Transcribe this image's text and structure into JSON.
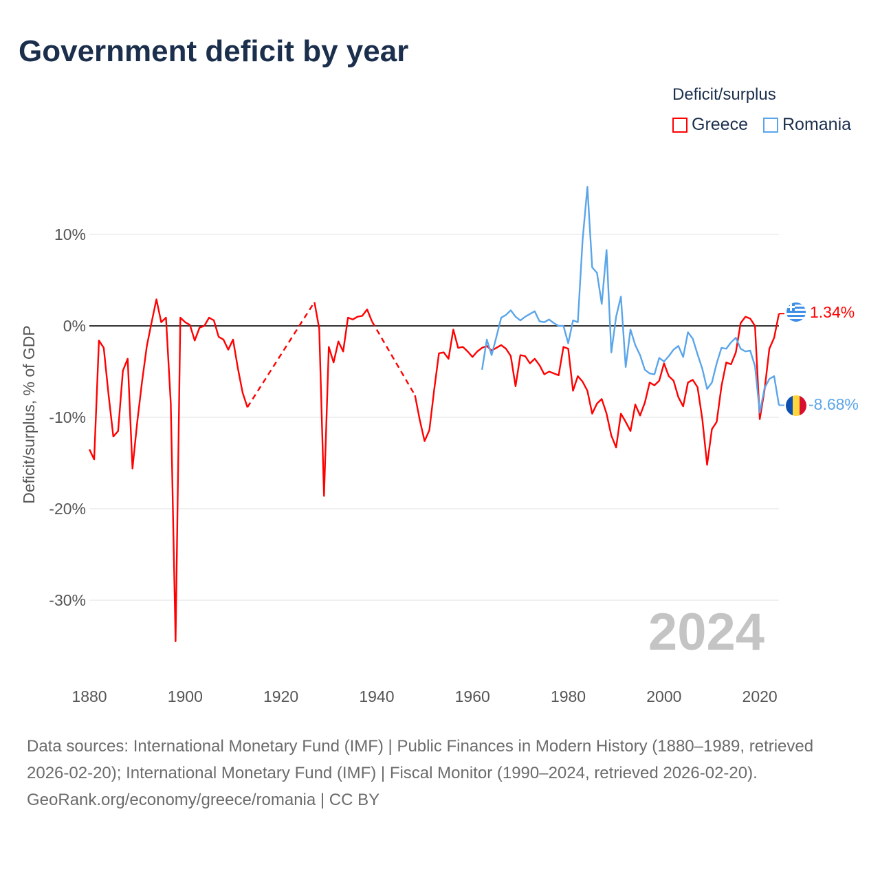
{
  "title": "Government deficit by year",
  "legend": {
    "title": "Deficit/surplus",
    "items": [
      {
        "label": "Greece",
        "color": "#ff0000"
      },
      {
        "label": "Romania",
        "color": "#5aa5ea"
      }
    ]
  },
  "chart_data": {
    "type": "line",
    "title": "Government deficit by year",
    "xlabel": "",
    "ylabel": "Deficit/surplus, % of GDP",
    "xlim": [
      1880,
      2024
    ],
    "ylim": [
      -36,
      18
    ],
    "x_ticks": [
      1880,
      1900,
      1920,
      1940,
      1960,
      1980,
      2000,
      2020
    ],
    "x_tick_labels": [
      "1880",
      "1900",
      "1920",
      "1940",
      "1960",
      "1980",
      "2000",
      "2020"
    ],
    "y_ticks": [
      10,
      0,
      -10,
      -20,
      -30
    ],
    "y_tick_labels": [
      "10%",
      "0%",
      "-10%",
      "-20%",
      "-30%"
    ],
    "grid": true,
    "year_watermark": "2024",
    "series": [
      {
        "name": "Greece",
        "color": "#ff0000",
        "end_label": "1.34%",
        "points": [
          [
            1880,
            -13.5
          ],
          [
            1881,
            -14.6
          ],
          [
            1882,
            -1.6
          ],
          [
            1883,
            -2.4
          ],
          [
            1884,
            -7.5
          ],
          [
            1885,
            -12.1
          ],
          [
            1886,
            -11.5
          ],
          [
            1887,
            -4.9
          ],
          [
            1888,
            -3.6
          ],
          [
            1889,
            -15.6
          ],
          [
            1890,
            -10.5
          ],
          [
            1891,
            -6.1
          ],
          [
            1892,
            -2.2
          ],
          [
            1893,
            0.4
          ],
          [
            1894,
            2.9
          ],
          [
            1895,
            0.4
          ],
          [
            1896,
            0.9
          ],
          [
            1897,
            -8.5
          ],
          [
            1898,
            -34.5
          ],
          [
            1899,
            0.9
          ],
          [
            1900,
            0.4
          ],
          [
            1901,
            0.1
          ],
          [
            1902,
            -1.6
          ],
          [
            1903,
            -0.2
          ],
          [
            1904,
            0.0
          ],
          [
            1905,
            0.9
          ],
          [
            1906,
            0.6
          ],
          [
            1907,
            -1.2
          ],
          [
            1908,
            -1.5
          ],
          [
            1909,
            -2.6
          ],
          [
            1910,
            -1.5
          ],
          [
            1911,
            -4.6
          ],
          [
            1912,
            -7.3
          ],
          [
            1913,
            -8.9
          ],
          [
            1927,
            2.6
          ],
          [
            1928,
            -0.3
          ],
          [
            1929,
            -18.6
          ],
          [
            1930,
            -2.3
          ],
          [
            1931,
            -4.0
          ],
          [
            1932,
            -1.7
          ],
          [
            1933,
            -2.8
          ],
          [
            1934,
            0.9
          ],
          [
            1935,
            0.7
          ],
          [
            1936,
            1.0
          ],
          [
            1937,
            1.1
          ],
          [
            1938,
            1.8
          ],
          [
            1939,
            0.5
          ],
          [
            1948,
            -7.6
          ],
          [
            1949,
            -10.3
          ],
          [
            1950,
            -12.6
          ],
          [
            1951,
            -11.4
          ],
          [
            1952,
            -7.0
          ],
          [
            1953,
            -3.0
          ],
          [
            1954,
            -2.9
          ],
          [
            1955,
            -3.6
          ],
          [
            1956,
            -0.4
          ],
          [
            1957,
            -2.4
          ],
          [
            1958,
            -2.3
          ],
          [
            1959,
            -2.8
          ],
          [
            1960,
            -3.4
          ],
          [
            1961,
            -2.8
          ],
          [
            1962,
            -2.4
          ],
          [
            1963,
            -2.2
          ],
          [
            1964,
            -2.7
          ],
          [
            1965,
            -2.4
          ],
          [
            1966,
            -2.1
          ],
          [
            1967,
            -2.5
          ],
          [
            1968,
            -3.3
          ],
          [
            1969,
            -6.6
          ],
          [
            1970,
            -3.2
          ],
          [
            1971,
            -3.3
          ],
          [
            1972,
            -4.1
          ],
          [
            1973,
            -3.6
          ],
          [
            1974,
            -4.3
          ],
          [
            1975,
            -5.3
          ],
          [
            1976,
            -5.0
          ],
          [
            1977,
            -5.2
          ],
          [
            1978,
            -5.4
          ],
          [
            1979,
            -2.3
          ],
          [
            1980,
            -2.5
          ],
          [
            1981,
            -7.1
          ],
          [
            1982,
            -5.5
          ],
          [
            1983,
            -6.1
          ],
          [
            1984,
            -7.1
          ],
          [
            1985,
            -9.6
          ],
          [
            1986,
            -8.5
          ],
          [
            1987,
            -8.0
          ],
          [
            1988,
            -9.6
          ],
          [
            1989,
            -12.0
          ],
          [
            1990,
            -13.3
          ],
          [
            1991,
            -9.6
          ],
          [
            1992,
            -10.5
          ],
          [
            1993,
            -11.5
          ],
          [
            1994,
            -8.6
          ],
          [
            1995,
            -9.8
          ],
          [
            1996,
            -8.4
          ],
          [
            1997,
            -6.2
          ],
          [
            1998,
            -6.5
          ],
          [
            1999,
            -6.0
          ],
          [
            2000,
            -4.1
          ],
          [
            2001,
            -5.5
          ],
          [
            2002,
            -6.0
          ],
          [
            2003,
            -7.8
          ],
          [
            2004,
            -8.8
          ],
          [
            2005,
            -6.2
          ],
          [
            2006,
            -5.9
          ],
          [
            2007,
            -6.7
          ],
          [
            2008,
            -10.2
          ],
          [
            2009,
            -15.2
          ],
          [
            2010,
            -11.3
          ],
          [
            2011,
            -10.5
          ],
          [
            2012,
            -6.6
          ],
          [
            2013,
            -4.0
          ],
          [
            2014,
            -4.2
          ],
          [
            2015,
            -2.9
          ],
          [
            2016,
            0.3
          ],
          [
            2017,
            1.0
          ],
          [
            2018,
            0.8
          ],
          [
            2019,
            0.0
          ],
          [
            2020,
            -10.2
          ],
          [
            2021,
            -7.0
          ],
          [
            2022,
            -2.5
          ],
          [
            2023,
            -1.3
          ],
          [
            2024,
            1.34
          ]
        ]
      },
      {
        "name": "Romania",
        "color": "#5aa5ea",
        "end_label": "-8.68%",
        "points": [
          [
            1962,
            -4.8
          ],
          [
            1963,
            -1.5
          ],
          [
            1964,
            -3.2
          ],
          [
            1965,
            -1.2
          ],
          [
            1966,
            0.9
          ],
          [
            1967,
            1.2
          ],
          [
            1968,
            1.7
          ],
          [
            1969,
            1.0
          ],
          [
            1970,
            0.6
          ],
          [
            1971,
            1.0
          ],
          [
            1972,
            1.3
          ],
          [
            1973,
            1.6
          ],
          [
            1974,
            0.5
          ],
          [
            1975,
            0.4
          ],
          [
            1976,
            0.7
          ],
          [
            1977,
            0.3
          ],
          [
            1978,
            0.0
          ],
          [
            1979,
            0.0
          ],
          [
            1980,
            -1.9
          ],
          [
            1981,
            0.6
          ],
          [
            1982,
            0.4
          ],
          [
            1983,
            9.4
          ],
          [
            1984,
            15.2
          ],
          [
            1985,
            6.4
          ],
          [
            1986,
            5.8
          ],
          [
            1987,
            2.4
          ],
          [
            1988,
            8.3
          ],
          [
            1989,
            -2.9
          ],
          [
            1990,
            1.0
          ],
          [
            1991,
            3.2
          ],
          [
            1992,
            -4.5
          ],
          [
            1993,
            -0.4
          ],
          [
            1994,
            -2.1
          ],
          [
            1995,
            -3.2
          ],
          [
            1996,
            -4.8
          ],
          [
            1997,
            -5.2
          ],
          [
            1998,
            -5.3
          ],
          [
            1999,
            -3.5
          ],
          [
            2000,
            -3.9
          ],
          [
            2001,
            -3.3
          ],
          [
            2002,
            -2.6
          ],
          [
            2003,
            -2.2
          ],
          [
            2004,
            -3.4
          ],
          [
            2005,
            -0.7
          ],
          [
            2006,
            -1.4
          ],
          [
            2007,
            -3.1
          ],
          [
            2008,
            -4.7
          ],
          [
            2009,
            -6.9
          ],
          [
            2010,
            -6.2
          ],
          [
            2011,
            -4.1
          ],
          [
            2012,
            -2.4
          ],
          [
            2013,
            -2.5
          ],
          [
            2014,
            -1.8
          ],
          [
            2015,
            -1.3
          ],
          [
            2016,
            -2.5
          ],
          [
            2017,
            -2.8
          ],
          [
            2018,
            -2.7
          ],
          [
            2019,
            -4.4
          ],
          [
            2020,
            -9.5
          ],
          [
            2021,
            -6.8
          ],
          [
            2022,
            -5.8
          ],
          [
            2023,
            -5.5
          ],
          [
            2024,
            -8.68
          ]
        ]
      }
    ]
  },
  "footer": {
    "sources": "Data sources: International Monetary Fund (IMF) | Public Finances in Modern History (1880–1989, retrieved 2026-02-20); International Monetary Fund (IMF) | Fiscal Monitor (1990–2024, retrieved 2026-02-20).",
    "credit": "GeoRank.org/economy/greece/romania | CC BY"
  }
}
